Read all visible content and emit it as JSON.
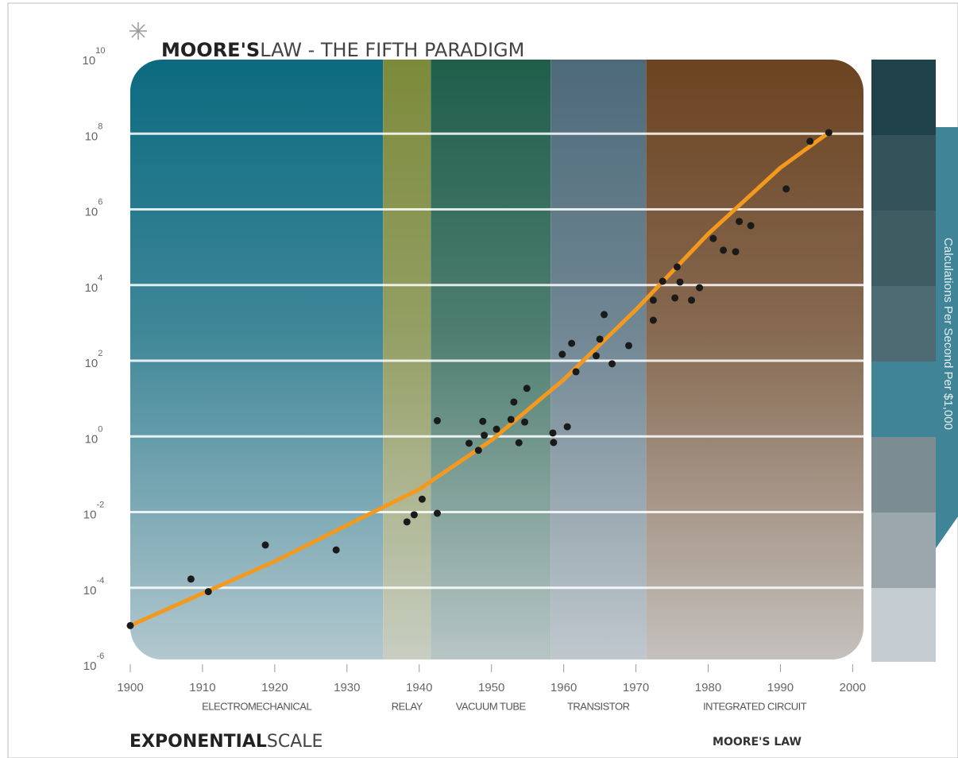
{
  "chart_data": {
    "type": "scatter",
    "title_bold": "MOORE'S",
    "title": "LAW - THE FIFTH PARADIGM",
    "y_label": "Calculations Per Second Per $1,000",
    "footer_bold": "EXPONENTIAL",
    "footer": "SCALE",
    "footer_right": "MOORE'S LAW",
    "log_y": true,
    "grid": true,
    "xlim": [
      1900,
      2001.5
    ],
    "xticks": [
      1900,
      1910,
      1920,
      1930,
      1940,
      1950,
      1960,
      1970,
      1980,
      1990,
      2000
    ],
    "ylim": [
      1e-06,
      10000000000
    ],
    "yticks": [
      {
        "value": 1e-06,
        "label": "10",
        "exponent": "-6"
      },
      {
        "value": 0.0001,
        "label": "10",
        "exponent": "-4"
      },
      {
        "value": 0.01,
        "label": "10",
        "exponent": "-2"
      },
      {
        "value": 1,
        "label": "10",
        "exponent": "0"
      },
      {
        "value": 100,
        "label": "10",
        "exponent": "2"
      },
      {
        "value": 10000,
        "label": "10",
        "exponent": "4"
      },
      {
        "value": 1000000,
        "label": "10",
        "exponent": "6"
      },
      {
        "value": 100000000,
        "label": "10",
        "exponent": "8"
      },
      {
        "value": 10000000000,
        "label": "10",
        "exponent": "10"
      }
    ],
    "paradigms": [
      {
        "label": "ELECTROMECHANICAL",
        "start": 1900,
        "end": 1935,
        "color": "#0b6a80"
      },
      {
        "label": "RELAY",
        "start": 1935,
        "end": 1941.6,
        "color": "#7c8a3a"
      },
      {
        "label": "VACUUM TUBE",
        "start": 1941.6,
        "end": 1958.2,
        "color": "#1f5e4a"
      },
      {
        "label": "TRANSISTOR",
        "start": 1958.2,
        "end": 1971.4,
        "color": "#4d6a7a"
      },
      {
        "label": "INTEGRATED CIRCUIT",
        "start": 1971.4,
        "end": 2001.5,
        "color": "#6b4321"
      }
    ],
    "point_color": "#1a1a1a",
    "x": [
      1900,
      1908.4,
      1910.8,
      1918.7,
      1928.5,
      1938.3,
      1939.3,
      1940.4,
      1942.5,
      1942.5,
      1946.9,
      1948.2,
      1948.8,
      1949.0,
      1950.7,
      1952.7,
      1953.1,
      1953.8,
      1954.6,
      1954.9,
      1958.5,
      1958.6,
      1960.5,
      1959.8,
      1961.1,
      1961.7,
      1964.5,
      1965.0,
      1965.6,
      1966.7,
      1969.0,
      1972.4,
      1972.4,
      1973.7,
      1975.4,
      1975.7,
      1976.1,
      1977.7,
      1978.8,
      1980.7,
      1982.1,
      1983.8,
      1984.3,
      1985.9,
      1990.8,
      1994.1,
      1996.7
    ],
    "values": [
      1e-05,
      0.00017,
      7.9e-05,
      0.00135,
      0.001,
      0.0055,
      0.0085,
      0.022,
      0.0093,
      2.6,
      0.66,
      0.43,
      2.5,
      1.07,
      1.55,
      2.8,
      8.1,
      0.68,
      2.4,
      18.6,
      1.23,
      0.69,
      1.8,
      148,
      288,
      51,
      135,
      372,
      1660,
      83,
      251,
      1175,
      3980,
      12600,
      4570,
      30200,
      12000,
      3980,
      8510,
      170000,
      83200,
      75900,
      479000,
      372000,
      3470000,
      63100000,
      107000000
    ],
    "trend": {
      "color": "#f39a1e",
      "x": [
        1900,
        1910,
        1920,
        1930,
        1940,
        1950,
        1960,
        1970,
        1980,
        1990,
        1996.7
      ],
      "values": [
        1e-05,
        7.1e-05,
        0.0005,
        0.0045,
        0.04,
        0.79,
        31.6,
        2240,
        224000,
        12600000,
        107000000
      ]
    }
  }
}
